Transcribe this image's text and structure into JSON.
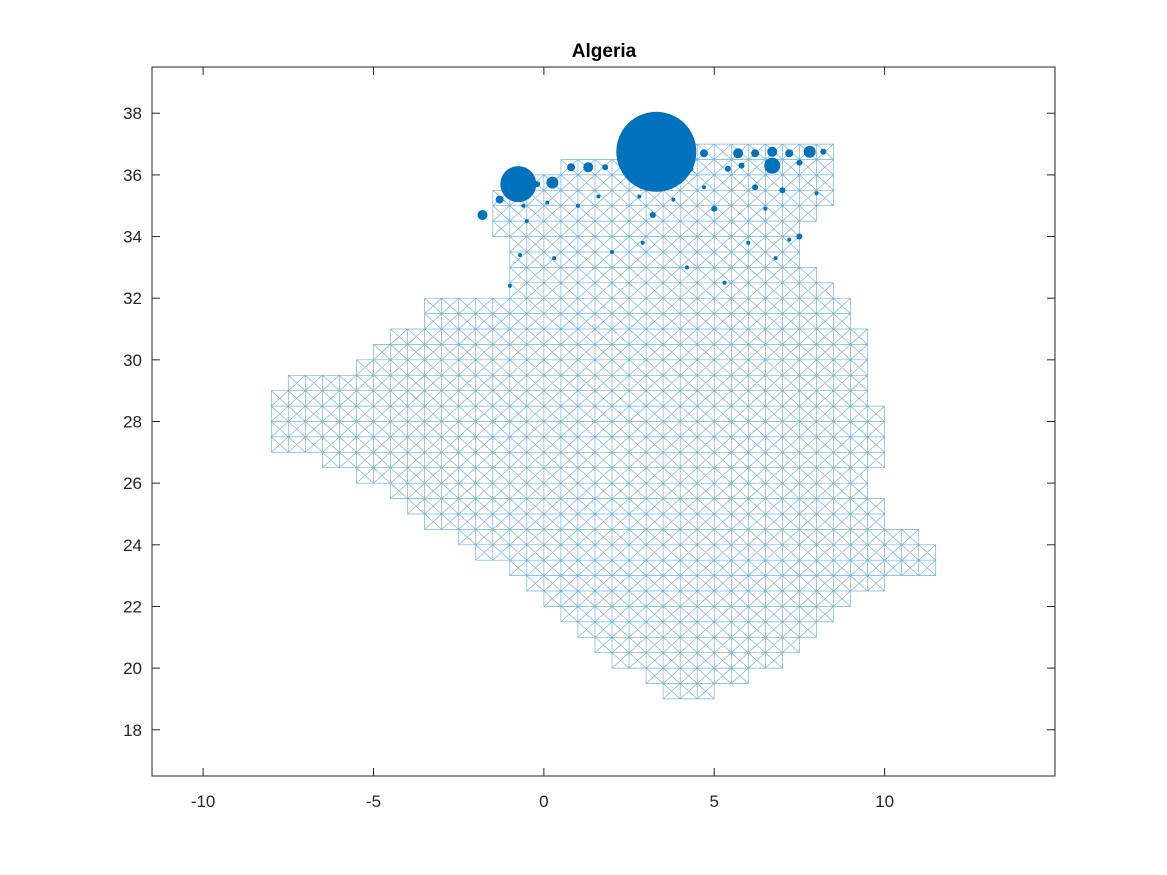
{
  "figure": {
    "background": "#ffffff",
    "axes_color": "#262626",
    "mesh_color": "#5aa3d6",
    "point_color": "#0072bd"
  },
  "chart_data": {
    "type": "scatter",
    "title": "Algeria",
    "xlabel": "",
    "ylabel": "",
    "xlim": [
      -11.5,
      15
    ],
    "ylim": [
      16.5,
      39.5
    ],
    "xticks": [
      -10,
      -5,
      0,
      5,
      10
    ],
    "yticks": [
      18,
      20,
      22,
      24,
      26,
      28,
      30,
      32,
      34,
      36,
      38
    ],
    "grid": false,
    "legend": "none",
    "mesh": {
      "description_values": "triangulated grid cells over country boundary, cell size 0.5 degrees",
      "cell": 0.5,
      "outline": [
        [
          -8.2,
          27.3
        ],
        [
          -8.2,
          28.8
        ],
        [
          -7.6,
          29.3
        ],
        [
          -6.4,
          29.6
        ],
        [
          -5.5,
          29.8
        ],
        [
          -4.8,
          30.6
        ],
        [
          -3.8,
          31.2
        ],
        [
          -3.2,
          31.8
        ],
        [
          -2.2,
          31.9
        ],
        [
          -1.2,
          32.0
        ],
        [
          -0.8,
          33.0
        ],
        [
          -1.2,
          34.0
        ],
        [
          -1.7,
          35.0
        ],
        [
          -1.0,
          35.6
        ],
        [
          0.0,
          35.9
        ],
        [
          1.0,
          36.4
        ],
        [
          2.0,
          36.6
        ],
        [
          3.0,
          36.8
        ],
        [
          4.0,
          36.9
        ],
        [
          5.0,
          36.8
        ],
        [
          6.0,
          36.9
        ],
        [
          7.0,
          36.9
        ],
        [
          8.3,
          36.8
        ],
        [
          8.3,
          35.2
        ],
        [
          7.6,
          34.3
        ],
        [
          7.6,
          33.2
        ],
        [
          8.3,
          32.6
        ],
        [
          9.0,
          32.0
        ],
        [
          9.1,
          31.2
        ],
        [
          9.6,
          30.2
        ],
        [
          9.7,
          29.0
        ],
        [
          9.8,
          27.7
        ],
        [
          9.8,
          26.5
        ],
        [
          9.6,
          26.0
        ],
        [
          9.9,
          25.0
        ],
        [
          10.0,
          24.4
        ],
        [
          10.9,
          24.4
        ],
        [
          11.7,
          23.8
        ],
        [
          11.2,
          23.1
        ],
        [
          10.4,
          23.1
        ],
        [
          9.5,
          22.4
        ],
        [
          8.3,
          21.8
        ],
        [
          7.5,
          20.9
        ],
        [
          6.8,
          20.1
        ],
        [
          5.8,
          19.5
        ],
        [
          4.9,
          19.2
        ],
        [
          3.3,
          19.2
        ],
        [
          3.2,
          19.9
        ],
        [
          2.2,
          20.1
        ],
        [
          1.2,
          20.8
        ],
        [
          1.0,
          21.2
        ],
        [
          0.0,
          22.4
        ],
        [
          -1.5,
          23.5
        ],
        [
          -3.2,
          24.6
        ],
        [
          -4.8,
          25.8
        ],
        [
          -6.2,
          26.7
        ],
        [
          -7.2,
          27.0
        ]
      ]
    },
    "series": [
      {
        "values_format": "[longitude, latitude, relative_size]",
        "points": [
          [
            3.3,
            36.75,
            40
          ],
          [
            -0.75,
            35.7,
            18
          ],
          [
            6.7,
            36.3,
            8
          ],
          [
            0.25,
            35.75,
            6
          ],
          [
            7.8,
            36.75,
            6
          ],
          [
            5.7,
            36.7,
            5
          ],
          [
            6.7,
            36.75,
            5
          ],
          [
            4.7,
            36.7,
            4
          ],
          [
            6.2,
            36.7,
            4
          ],
          [
            7.2,
            36.7,
            4
          ],
          [
            1.3,
            36.25,
            5
          ],
          [
            0.8,
            36.25,
            4
          ],
          [
            -1.8,
            34.7,
            5
          ],
          [
            -1.3,
            35.2,
            4
          ],
          [
            -0.2,
            35.7,
            3
          ],
          [
            1.8,
            36.25,
            3
          ],
          [
            2.3,
            36.3,
            3
          ],
          [
            4.0,
            36.6,
            3
          ],
          [
            4.3,
            36.2,
            3
          ],
          [
            5.4,
            36.2,
            3
          ],
          [
            5.8,
            36.3,
            3
          ],
          [
            7.5,
            36.4,
            3
          ],
          [
            8.2,
            36.75,
            3
          ],
          [
            7.0,
            35.5,
            3
          ],
          [
            6.2,
            35.6,
            3
          ],
          [
            3.2,
            34.7,
            3
          ],
          [
            5.0,
            34.9,
            3
          ],
          [
            7.5,
            34.0,
            3
          ],
          [
            6.8,
            33.3,
            2
          ],
          [
            3.8,
            35.2,
            2
          ],
          [
            2.8,
            35.3,
            2
          ],
          [
            1.6,
            35.3,
            2
          ],
          [
            0.1,
            35.1,
            2
          ],
          [
            -0.6,
            35.0,
            2
          ],
          [
            8.0,
            35.4,
            2
          ],
          [
            6.5,
            34.9,
            2
          ],
          [
            2.9,
            33.8,
            2
          ],
          [
            4.2,
            33.0,
            2
          ],
          [
            5.3,
            32.5,
            2
          ],
          [
            0.3,
            33.3,
            2
          ],
          [
            -0.7,
            33.4,
            2
          ],
          [
            -1.0,
            32.4,
            2
          ],
          [
            6.0,
            33.8,
            2
          ],
          [
            4.7,
            35.6,
            2
          ],
          [
            1.0,
            35.0,
            2
          ],
          [
            7.2,
            33.9,
            2
          ],
          [
            2.0,
            33.5,
            2
          ],
          [
            -0.5,
            34.5,
            2
          ]
        ]
      }
    ]
  }
}
